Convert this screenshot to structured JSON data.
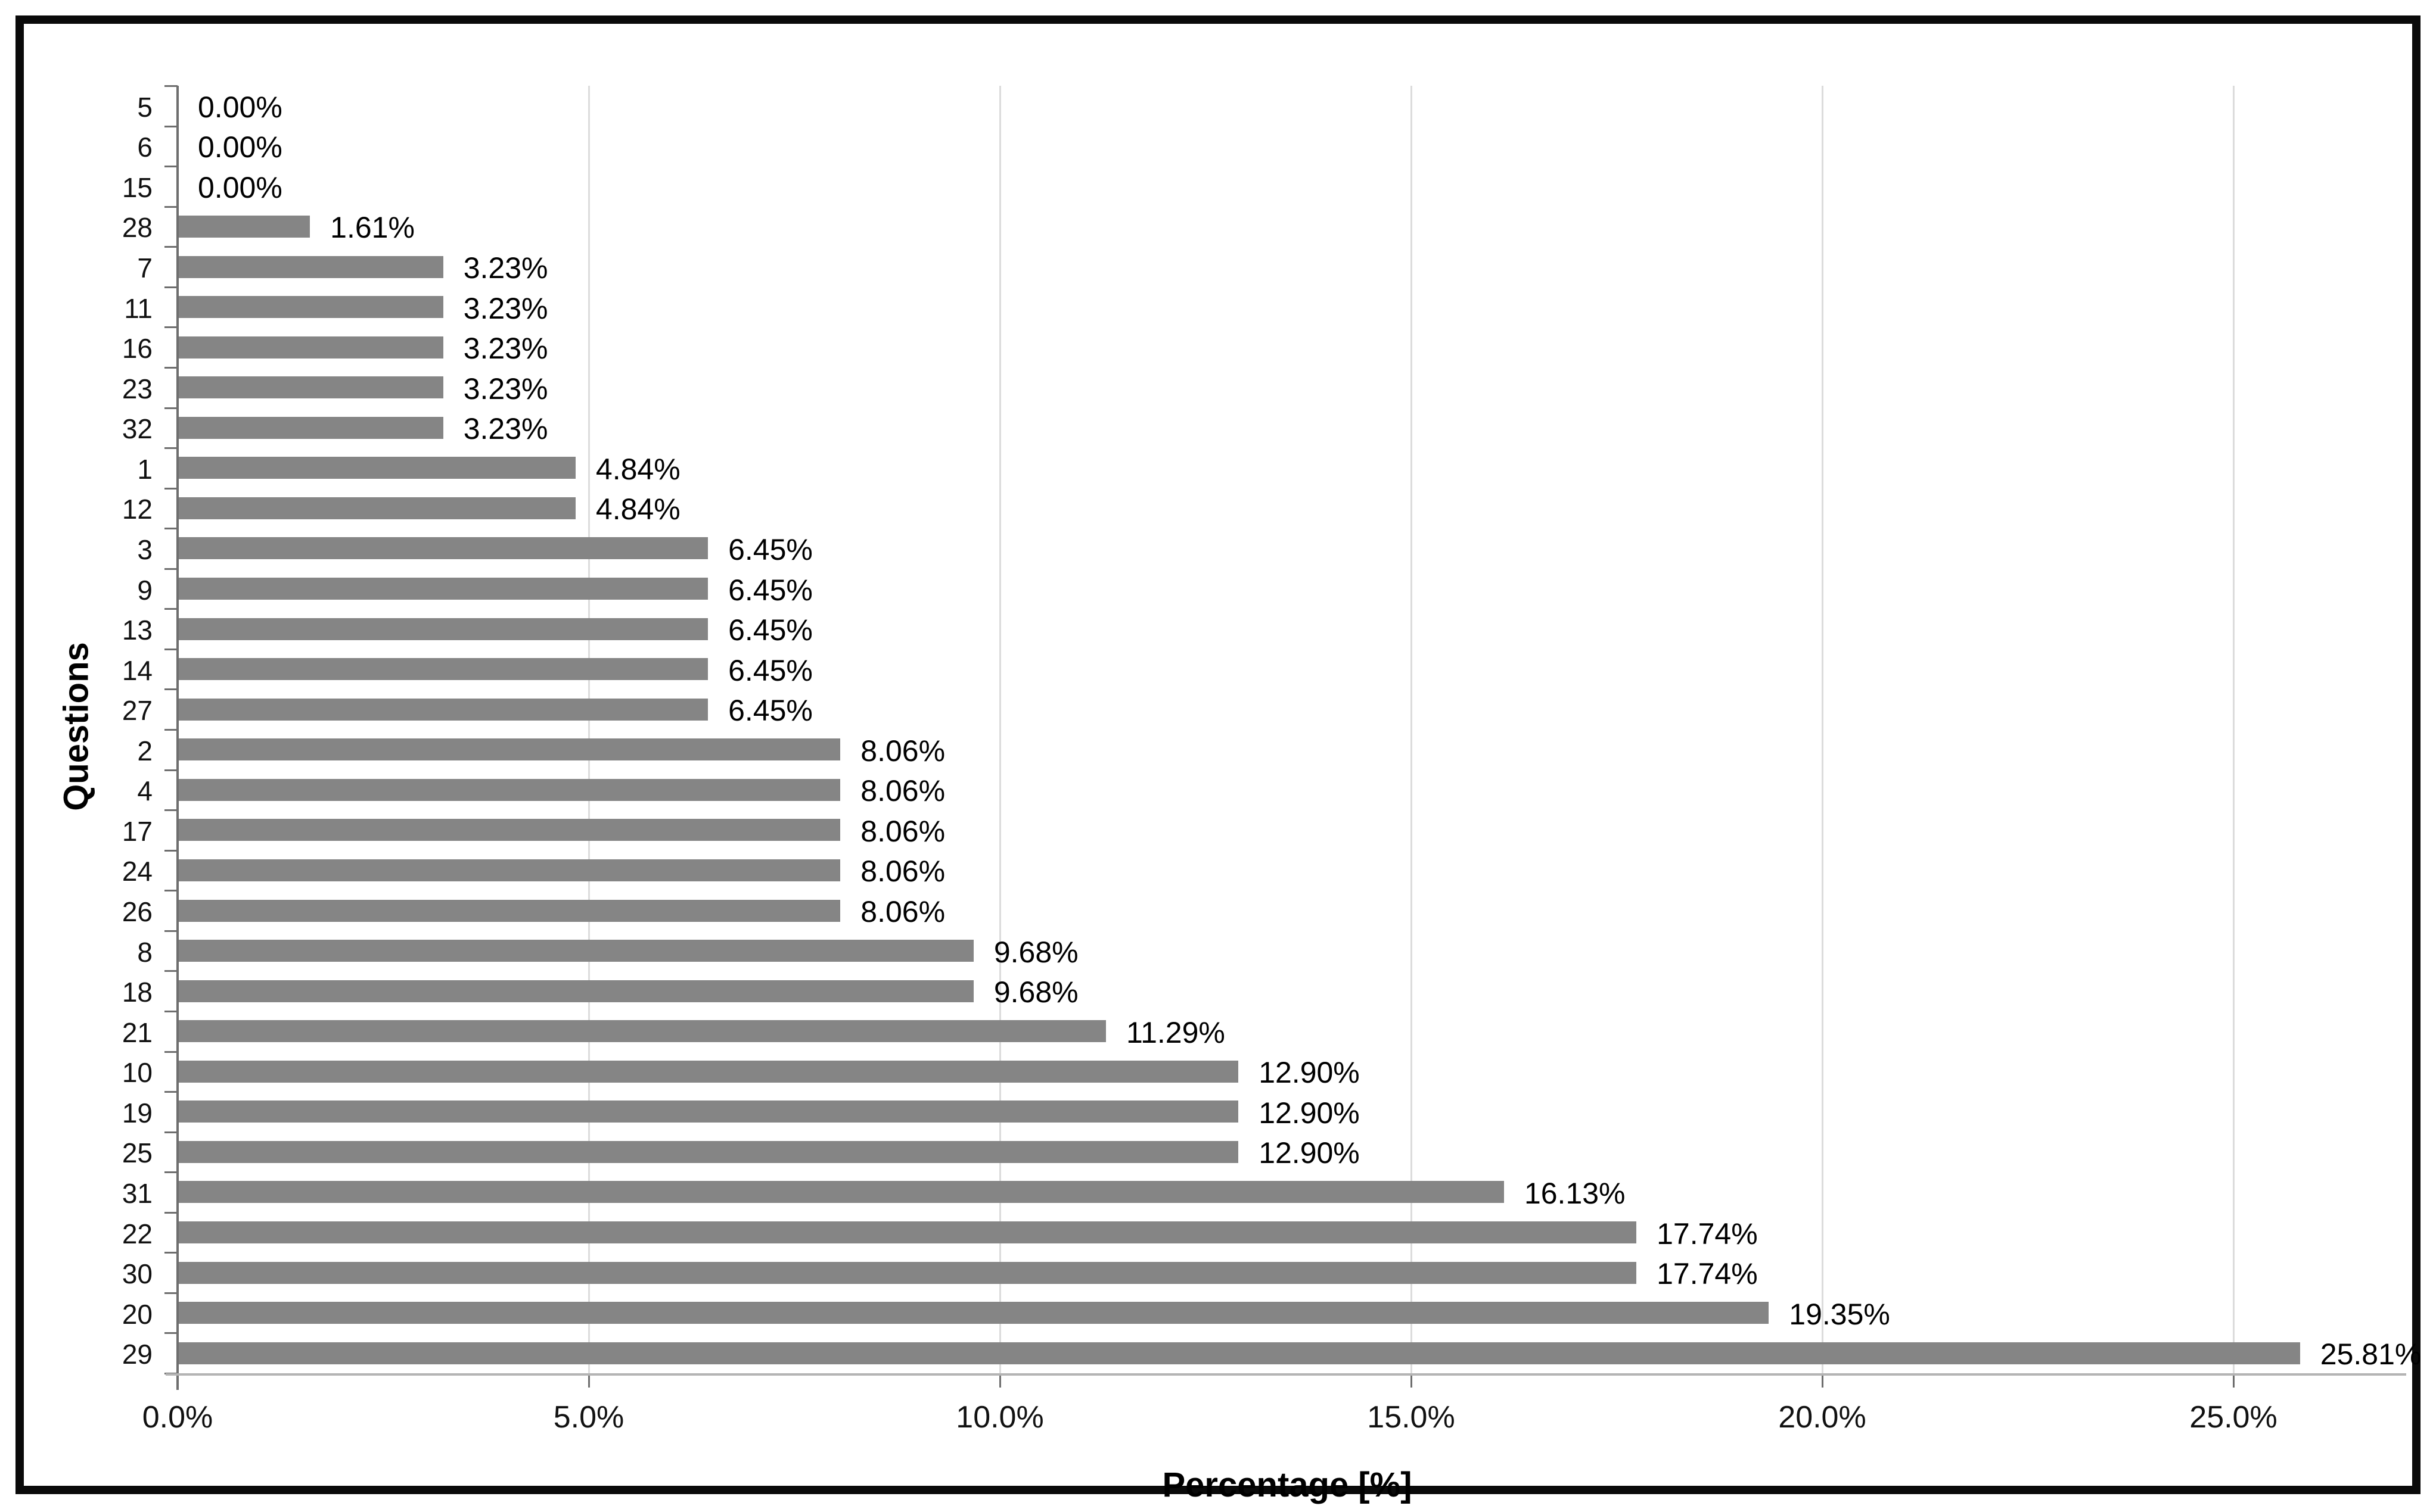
{
  "chart_data": {
    "type": "bar",
    "orientation": "horizontal",
    "title": "",
    "xlabel": "Percentage [%]",
    "ylabel": "Questions",
    "categories": [
      "5",
      "6",
      "15",
      "28",
      "7",
      "11",
      "16",
      "23",
      "32",
      "1",
      "12",
      "3",
      "9",
      "13",
      "14",
      "27",
      "2",
      "4",
      "17",
      "24",
      "26",
      "8",
      "18",
      "21",
      "10",
      "19",
      "25",
      "31",
      "22",
      "30",
      "20",
      "29"
    ],
    "values": [
      0.0,
      0.0,
      0.0,
      1.61,
      3.23,
      3.23,
      3.23,
      3.23,
      3.23,
      4.84,
      4.84,
      6.45,
      6.45,
      6.45,
      6.45,
      6.45,
      8.06,
      8.06,
      8.06,
      8.06,
      8.06,
      9.68,
      9.68,
      11.29,
      12.9,
      12.9,
      12.9,
      16.13,
      17.74,
      17.74,
      19.35,
      25.81
    ],
    "value_labels": [
      "0.00%",
      "0.00%",
      "0.00%",
      "1.61%",
      "3.23%",
      "3.23%",
      "3.23%",
      "3.23%",
      "3.23%",
      "4.84%",
      "4.84%",
      "6.45%",
      "6.45%",
      "6.45%",
      "6.45%",
      "6.45%",
      "8.06%",
      "8.06%",
      "8.06%",
      "8.06%",
      "8.06%",
      "9.68%",
      "9.68%",
      "11.29%",
      "12.90%",
      "12.90%",
      "12.90%",
      "16.13%",
      "17.74%",
      "17.74%",
      "19.35%",
      "25.81%"
    ],
    "x_ticks": [
      0,
      5,
      10,
      15,
      20,
      25
    ],
    "x_tick_labels": [
      "0.0%",
      "5.0%",
      "10.0%",
      "15.0%",
      "20.0%",
      "25.0%"
    ],
    "xlim": [
      0,
      27
    ],
    "grid": "vertical-major",
    "legend": "none",
    "bar_color": "#858585",
    "gridline_color": "#dcdcdc",
    "axis_color": "#6e6e6e",
    "x_axis_line_color": "#b4b4b4",
    "label_color": "#000000",
    "frame_border_color": "#0a0a0a"
  }
}
